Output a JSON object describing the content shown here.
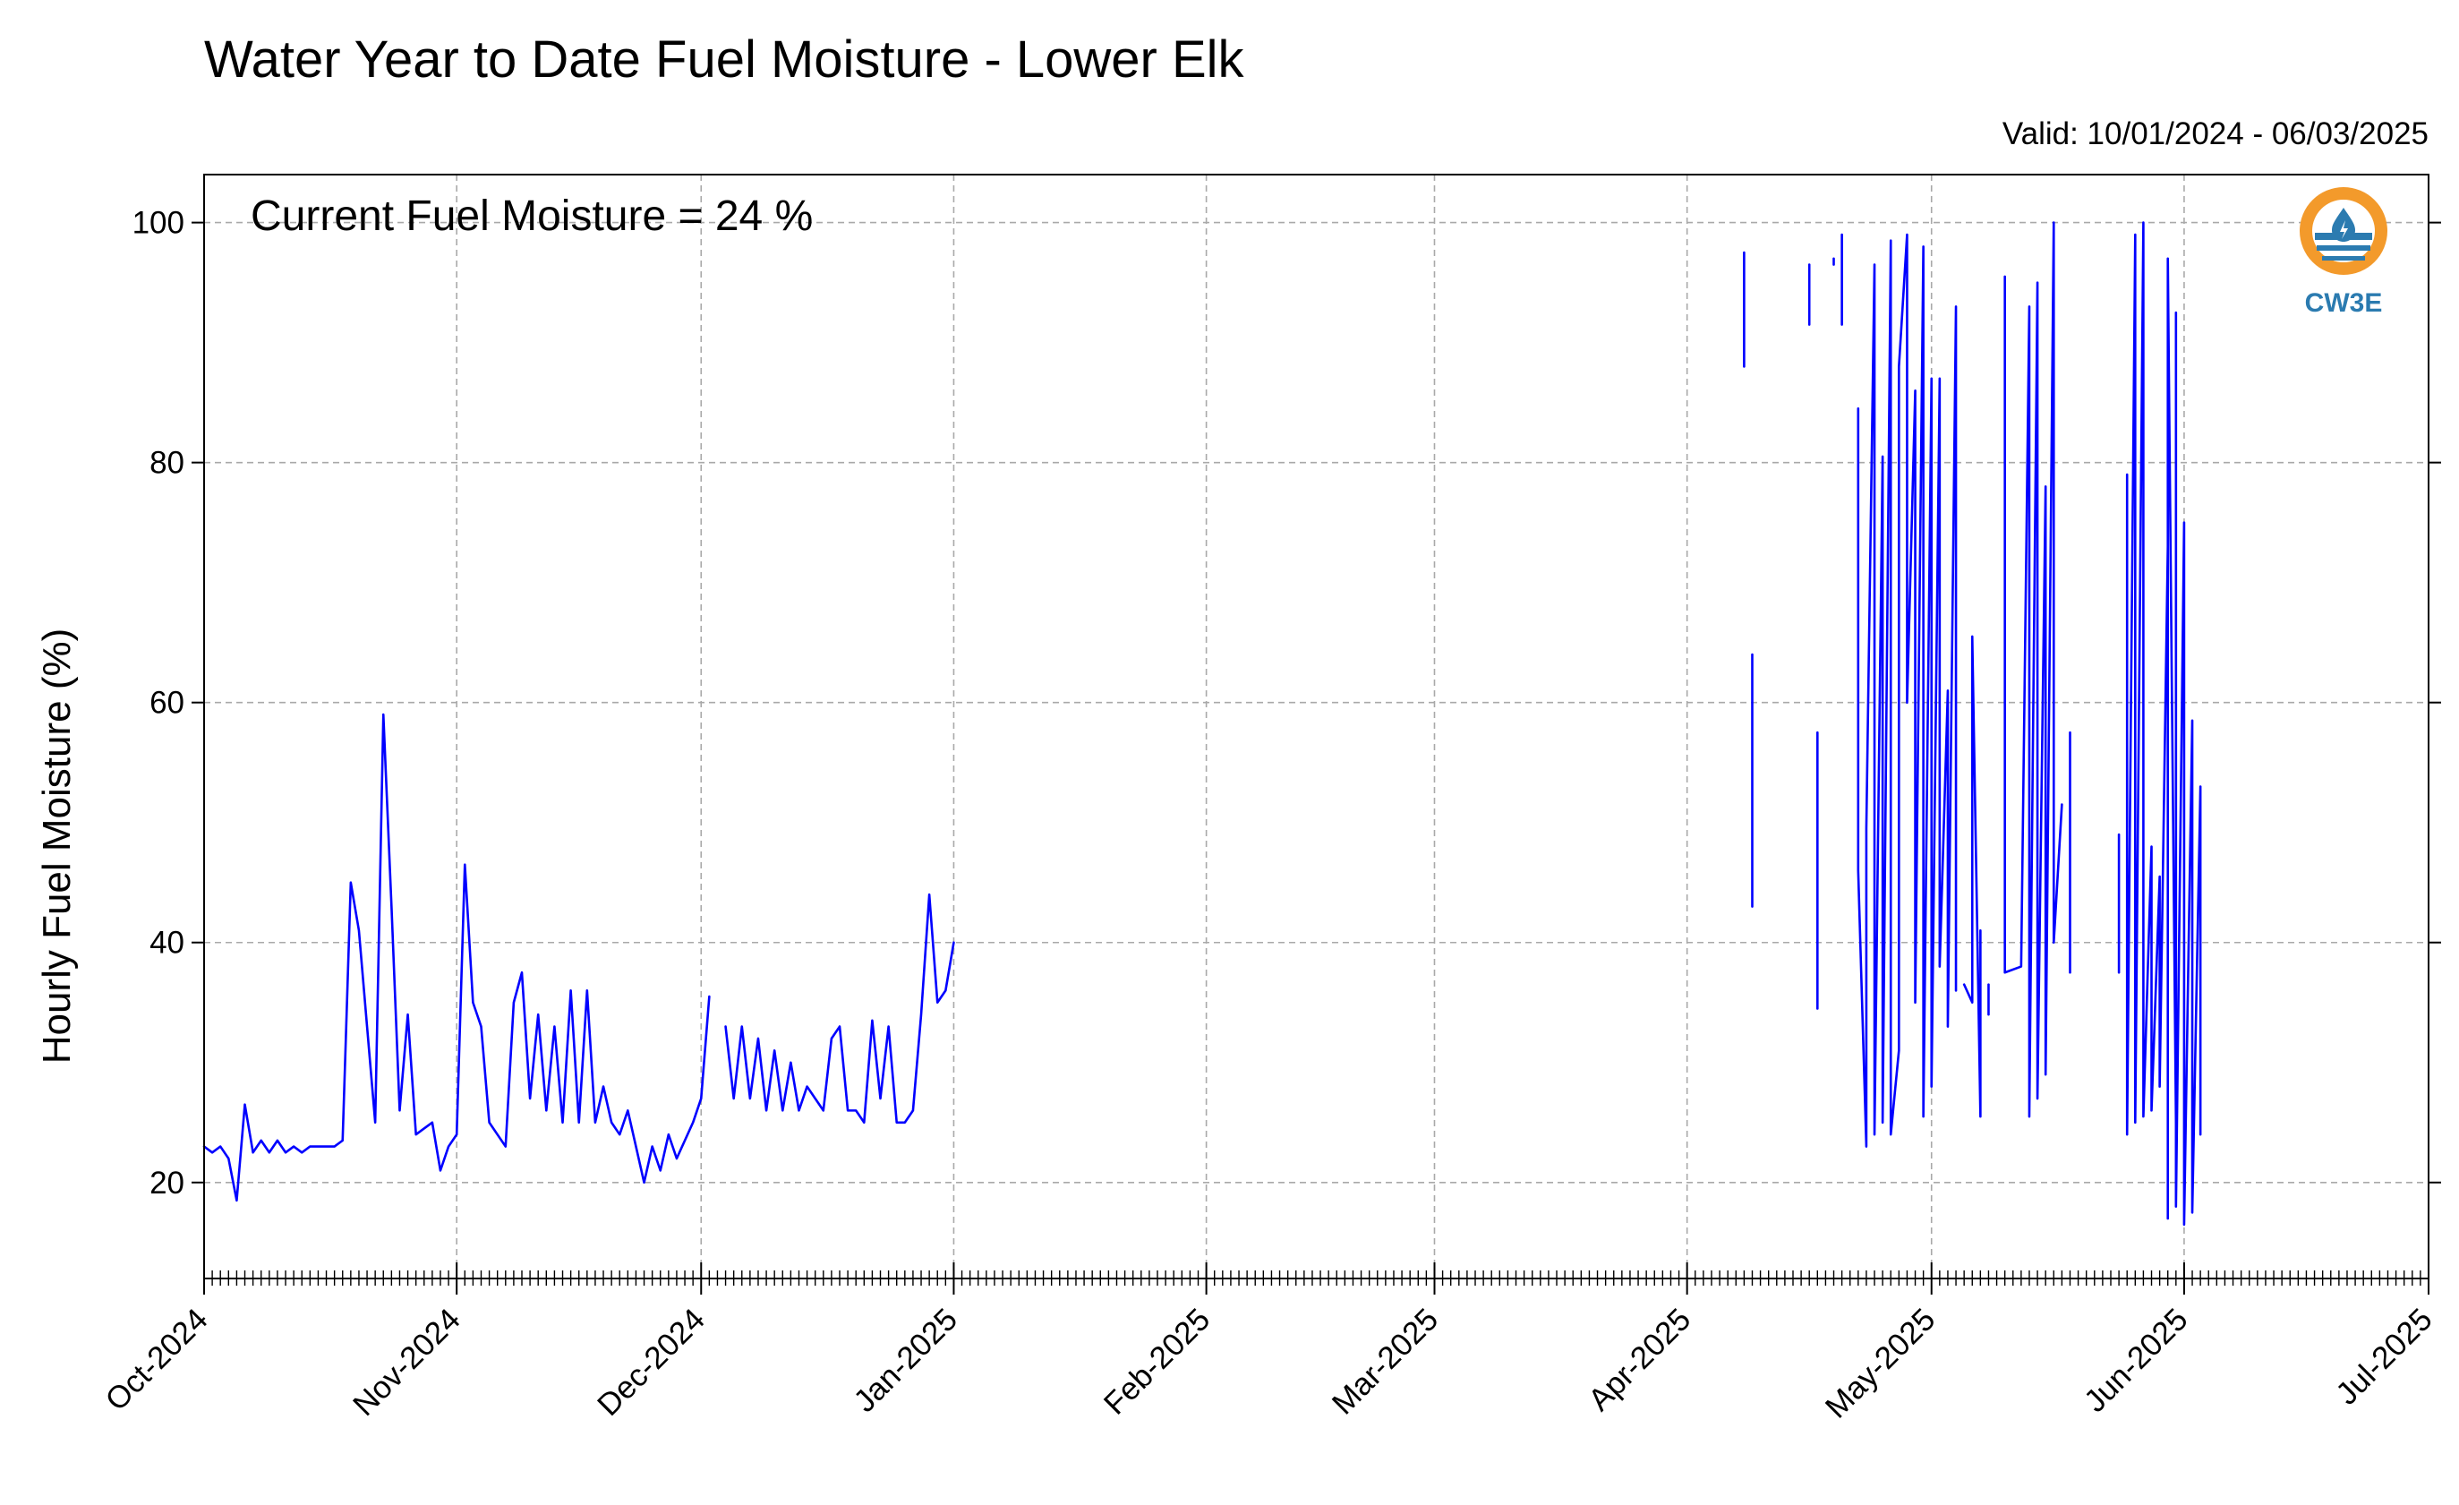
{
  "title": "Water Year to Date Fuel Moisture - Lower Elk",
  "valid_range": "Valid: 10/01/2024 - 06/03/2025",
  "annotation": "Current Fuel Moisture = 24 %",
  "logo": {
    "text": "CW3E",
    "icon": "water-drop-logo-icon"
  },
  "colors": {
    "series": "#0000ff",
    "logo_orange": "#f39a2b",
    "logo_blue": "#2b7bb0"
  },
  "chart_data": {
    "type": "line",
    "title": "Water Year to Date Fuel Moisture - Lower Elk",
    "subtitle": "Valid: 10/01/2024 - 06/03/2025",
    "xlabel": "",
    "ylabel": "Hourly Fuel Moisture (%)",
    "xlim": [
      "2024-10-01",
      "2025-07-01"
    ],
    "ylim": [
      12,
      104
    ],
    "x_ticks": [
      "Oct-2024",
      "Nov-2024",
      "Dec-2024",
      "Jan-2025",
      "Feb-2025",
      "Mar-2025",
      "Apr-2025",
      "May-2025",
      "Jun-2025",
      "Jul-2025"
    ],
    "x_tick_dates": [
      "2024-10-01",
      "2024-11-01",
      "2024-12-01",
      "2025-01-01",
      "2025-02-01",
      "2025-03-01",
      "2025-04-01",
      "2025-05-01",
      "2025-06-01",
      "2025-07-01"
    ],
    "y_ticks": [
      20,
      40,
      60,
      80,
      100
    ],
    "grid": true,
    "series": [
      {
        "segments": [
          [
            [
              "2024-10-01",
              23
            ],
            [
              "2024-10-02",
              22.5
            ],
            [
              "2024-10-03",
              23
            ],
            [
              "2024-10-04",
              22
            ],
            [
              "2024-10-05",
              18.5
            ],
            [
              "2024-10-06",
              26.5
            ],
            [
              "2024-10-07",
              22.5
            ],
            [
              "2024-10-08",
              23.5
            ],
            [
              "2024-10-09",
              22.5
            ],
            [
              "2024-10-10",
              23.5
            ],
            [
              "2024-10-11",
              22.5
            ],
            [
              "2024-10-12",
              23
            ],
            [
              "2024-10-13",
              22.5
            ],
            [
              "2024-10-14",
              23
            ],
            [
              "2024-10-15",
              23
            ],
            [
              "2024-10-16",
              23
            ],
            [
              "2024-10-17",
              23
            ],
            [
              "2024-10-18",
              23.5
            ],
            [
              "2024-10-19",
              45
            ],
            [
              "2024-10-20",
              41
            ],
            [
              "2024-10-21",
              33
            ],
            [
              "2024-10-22",
              25
            ],
            [
              "2024-10-23",
              59
            ],
            [
              "2024-10-24",
              43
            ],
            [
              "2024-10-25",
              26
            ],
            [
              "2024-10-26",
              34
            ],
            [
              "2024-10-27",
              24
            ],
            [
              "2024-10-28",
              24.5
            ],
            [
              "2024-10-29",
              25
            ],
            [
              "2024-10-30",
              21
            ],
            [
              "2024-10-31",
              23
            ],
            [
              "2024-11-01",
              24
            ],
            [
              "2024-11-02",
              46.5
            ],
            [
              "2024-11-03",
              35
            ],
            [
              "2024-11-04",
              33
            ],
            [
              "2024-11-05",
              25
            ],
            [
              "2024-11-06",
              24
            ],
            [
              "2024-11-07",
              23
            ],
            [
              "2024-11-08",
              35
            ],
            [
              "2024-11-09",
              37.5
            ],
            [
              "2024-11-10",
              27
            ],
            [
              "2024-11-11",
              34
            ],
            [
              "2024-11-12",
              26
            ],
            [
              "2024-11-13",
              33
            ],
            [
              "2024-11-14",
              25
            ],
            [
              "2024-11-15",
              36
            ],
            [
              "2024-11-16",
              25
            ],
            [
              "2024-11-17",
              36
            ],
            [
              "2024-11-18",
              25
            ],
            [
              "2024-11-19",
              28
            ],
            [
              "2024-11-20",
              25
            ],
            [
              "2024-11-21",
              24
            ],
            [
              "2024-11-22",
              26
            ],
            [
              "2024-11-23",
              23
            ],
            [
              "2024-11-24",
              20
            ],
            [
              "2024-11-25",
              23
            ],
            [
              "2024-11-26",
              21
            ],
            [
              "2024-11-27",
              24
            ],
            [
              "2024-11-28",
              22
            ],
            [
              "2024-11-29",
              23.5
            ],
            [
              "2024-11-30",
              25
            ],
            [
              "2024-12-01",
              27
            ],
            [
              "2024-12-02",
              35.5
            ]
          ],
          [
            [
              "2024-12-04",
              33
            ],
            [
              "2024-12-05",
              27
            ],
            [
              "2024-12-06",
              33
            ],
            [
              "2024-12-07",
              27
            ],
            [
              "2024-12-08",
              32
            ],
            [
              "2024-12-09",
              26
            ],
            [
              "2024-12-10",
              31
            ],
            [
              "2024-12-11",
              26
            ],
            [
              "2024-12-12",
              30
            ],
            [
              "2024-12-13",
              26
            ],
            [
              "2024-12-14",
              28
            ],
            [
              "2024-12-15",
              27
            ],
            [
              "2024-12-16",
              26
            ],
            [
              "2024-12-17",
              32
            ],
            [
              "2024-12-18",
              33
            ],
            [
              "2024-12-19",
              26
            ],
            [
              "2024-12-20",
              26
            ],
            [
              "2024-12-21",
              25
            ],
            [
              "2024-12-22",
              33.5
            ],
            [
              "2024-12-23",
              27
            ],
            [
              "2024-12-24",
              33
            ],
            [
              "2024-12-25",
              25
            ],
            [
              "2024-12-26",
              25
            ],
            [
              "2024-12-27",
              26
            ],
            [
              "2024-12-28",
              34
            ],
            [
              "2024-12-29",
              44
            ],
            [
              "2024-12-30",
              35
            ],
            [
              "2024-12-31",
              36
            ],
            [
              "2025-01-01",
              40
            ]
          ],
          [
            [
              "2025-04-08",
              97.5
            ],
            [
              "2025-04-08",
              88
            ]
          ],
          [
            [
              "2025-04-09",
              64
            ],
            [
              "2025-04-09",
              43
            ]
          ],
          [
            [
              "2025-04-16",
              96.5
            ],
            [
              "2025-04-16",
              91.5
            ]
          ],
          [
            [
              "2025-04-17",
              57.5
            ],
            [
              "2025-04-17",
              40
            ],
            [
              "2025-04-17",
              49.5
            ],
            [
              "2025-04-17",
              34.5
            ]
          ],
          [
            [
              "2025-04-19",
              97
            ],
            [
              "2025-04-19",
              96.5
            ]
          ],
          [
            [
              "2025-04-20",
              99
            ],
            [
              "2025-04-20",
              91.5
            ]
          ],
          [
            [
              "2025-04-22",
              84.5
            ],
            [
              "2025-04-22",
              60.5
            ],
            [
              "2025-04-22",
              46
            ],
            [
              "2025-04-23",
              23
            ],
            [
              "2025-04-23",
              49.5
            ],
            [
              "2025-04-24",
              96.5
            ],
            [
              "2025-04-24",
              24
            ],
            [
              "2025-04-25",
              80.5
            ],
            [
              "2025-04-25",
              25
            ],
            [
              "2025-04-26",
              98.5
            ],
            [
              "2025-04-26",
              24
            ],
            [
              "2025-04-27",
              31
            ],
            [
              "2025-04-27",
              88
            ],
            [
              "2025-04-28",
              99
            ],
            [
              "2025-04-28",
              60
            ],
            [
              "2025-04-29",
              86
            ],
            [
              "2025-04-29",
              35
            ],
            [
              "2025-04-30",
              98
            ],
            [
              "2025-04-30",
              25.5
            ],
            [
              "2025-05-01",
              87
            ],
            [
              "2025-05-01",
              28
            ],
            [
              "2025-05-02",
              87
            ],
            [
              "2025-05-02",
              38
            ],
            [
              "2025-05-03",
              61
            ],
            [
              "2025-05-03",
              33
            ],
            [
              "2025-05-04",
              93
            ],
            [
              "2025-05-04",
              36
            ]
          ],
          [
            [
              "2025-05-05",
              36.5
            ],
            [
              "2025-05-06",
              35
            ],
            [
              "2025-05-06",
              65.5
            ],
            [
              "2025-05-07",
              25.5
            ],
            [
              "2025-05-07",
              41
            ],
            [
              "2025-05-07",
              37.5
            ]
          ],
          [
            [
              "2025-05-08",
              36.5
            ],
            [
              "2025-05-08",
              34
            ]
          ],
          [
            [
              "2025-05-10",
              95.5
            ],
            [
              "2025-05-10",
              37.5
            ],
            [
              "2025-05-12",
              38
            ],
            [
              "2025-05-13",
              93
            ],
            [
              "2025-05-13",
              25.5
            ],
            [
              "2025-05-14",
              95
            ],
            [
              "2025-05-14",
              27
            ],
            [
              "2025-05-15",
              78
            ],
            [
              "2025-05-15",
              29
            ],
            [
              "2025-05-16",
              100
            ],
            [
              "2025-05-16",
              40
            ],
            [
              "2025-05-17",
              51.5
            ]
          ],
          [
            [
              "2025-05-18",
              57.5
            ],
            [
              "2025-05-18",
              37.5
            ]
          ],
          [
            [
              "2025-05-24",
              49
            ],
            [
              "2025-05-24",
              37.5
            ]
          ],
          [
            [
              "2025-05-25",
              79
            ],
            [
              "2025-05-25",
              24
            ],
            [
              "2025-05-26",
              99
            ],
            [
              "2025-05-26",
              25
            ],
            [
              "2025-05-27",
              100
            ],
            [
              "2025-05-27",
              25.5
            ],
            [
              "2025-05-28",
              48
            ],
            [
              "2025-05-28",
              26
            ],
            [
              "2025-05-29",
              45.5
            ],
            [
              "2025-05-29",
              28
            ],
            [
              "2025-05-30",
              73
            ],
            [
              "2025-05-30",
              17
            ],
            [
              "2025-05-30",
              97
            ],
            [
              "2025-05-31",
              25
            ],
            [
              "2025-05-31",
              92.5
            ],
            [
              "2025-05-31",
              18
            ],
            [
              "2025-06-01",
              75
            ],
            [
              "2025-06-01",
              16.5
            ],
            [
              "2025-06-02",
              58.5
            ],
            [
              "2025-06-02",
              17.5
            ],
            [
              "2025-06-03",
              53
            ],
            [
              "2025-06-03",
              24
            ]
          ]
        ]
      }
    ]
  }
}
